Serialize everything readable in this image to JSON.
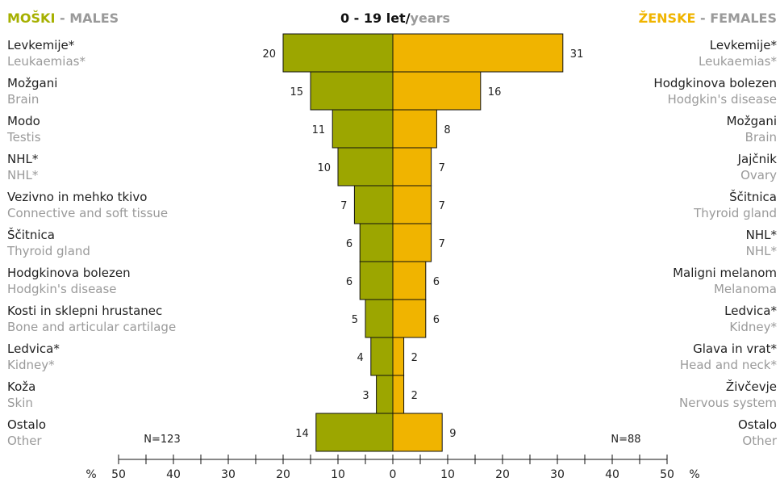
{
  "header": {
    "males_si": "MOŠKI",
    "males_sep": " - ",
    "males_en": "MALES",
    "title_bold": "0 - 19 let/",
    "title_light": "years",
    "females_si": "ŽENSKE",
    "females_sep": " - ",
    "females_en": "FEMALES"
  },
  "colors": {
    "males": "#9ca600",
    "females": "#f0b400",
    "males_title": "#a6b000",
    "females_title": "#f0b400",
    "secondary_text": "#9a9a9a"
  },
  "chart_data": {
    "type": "bar",
    "orientation": "horizontal-population-pyramid",
    "x_unit": "%",
    "xlim": [
      -50,
      50
    ],
    "x_ticks": [
      50,
      40,
      30,
      20,
      10,
      0,
      10,
      20,
      30,
      40,
      50
    ],
    "males": {
      "n_label": "N=123",
      "categories_si": [
        "Levkemije*",
        "Možgani",
        "Modo",
        "NHL*",
        "Vezivno in mehko tkivo",
        "Ščitnica",
        "Hodgkinova bolezen",
        "Kosti in sklepni hrustanec",
        "Ledvica*",
        "Koža",
        "Ostalo"
      ],
      "categories_en": [
        "Leukaemias*",
        "Brain",
        "Testis",
        "NHL*",
        "Connective and soft tissue",
        "Thyroid gland",
        "Hodgkin's disease",
        "Bone and articular cartilage",
        "Kidney*",
        "Skin",
        "Other"
      ],
      "values": [
        20,
        15,
        11,
        10,
        7,
        6,
        6,
        5,
        4,
        3,
        14
      ]
    },
    "females": {
      "n_label": "N=88",
      "categories_si": [
        "Levkemije*",
        "Hodgkinova bolezen",
        "Možgani",
        "Jajčnik",
        "Ščitnica",
        "NHL*",
        "Maligni melanom",
        "Ledvica*",
        "Glava in vrat*",
        "Živčevje",
        "Ostalo"
      ],
      "categories_en": [
        "Leukaemias*",
        "Hodgkin's disease",
        "Brain",
        "Ovary",
        "Thyroid gland",
        "NHL*",
        "Melanoma",
        "Kidney*",
        "Head and neck*",
        "Nervous system",
        "Other"
      ],
      "values": [
        31,
        16,
        8,
        7,
        7,
        7,
        6,
        6,
        2,
        2,
        9
      ]
    }
  }
}
